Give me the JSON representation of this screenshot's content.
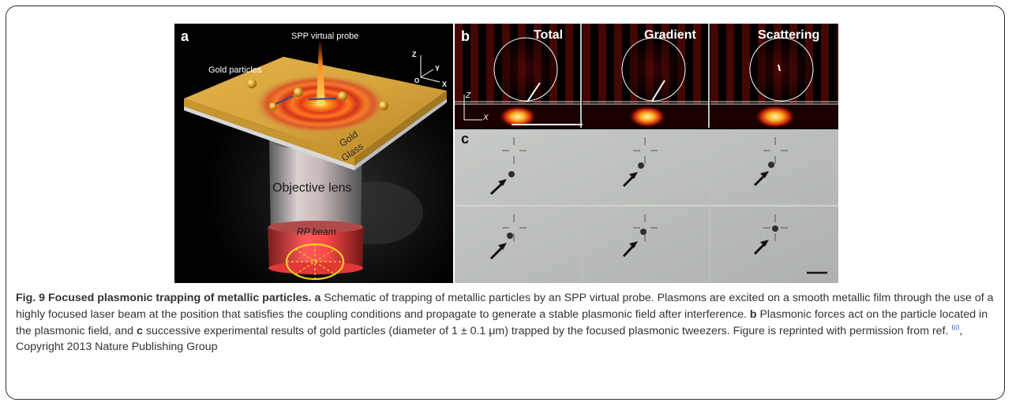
{
  "figure": {
    "panel_a": {
      "letter": "a",
      "probe_label": "SPP virtual probe",
      "particles_label": "Gold particles",
      "axis_z": "Z",
      "axis_y": "Y",
      "axis_x": "X",
      "axis_o": "O",
      "gold_label": "Gold",
      "glass_label": "Glass",
      "lens_label": "Objective lens",
      "beam_label": "RP beam"
    },
    "panel_b": {
      "letter": "b",
      "cols": [
        "Total",
        "Gradient",
        "Scattering"
      ],
      "axis_z": "Z",
      "axis_x": "X"
    },
    "panel_c": {
      "letter": "c"
    }
  },
  "caption": {
    "title": "Fig. 9 Focused plasmonic trapping of metallic particles.",
    "a_letter": "a",
    "a_text": " Schematic of trapping of metallic particles by an SPP virtual probe. Plasmons are excited on a smooth metallic film through the use of a highly focused laser beam at the position that satisfies the coupling conditions and propagate to generate a stable plasmonic field after interference. ",
    "b_letter": "b",
    "b_text": " Plasmonic forces act on the particle located in the plasmonic field, and ",
    "c_letter": "c",
    "c_text": " successive experimental results of gold particles (diameter of 1 ± 0.1 μm) trapped by the focused plasmonic tweezers. Figure is reprinted with permission from ref. ",
    "ref_num": "60",
    "tail": ", Copyright 2013 Nature Publishing Group"
  }
}
